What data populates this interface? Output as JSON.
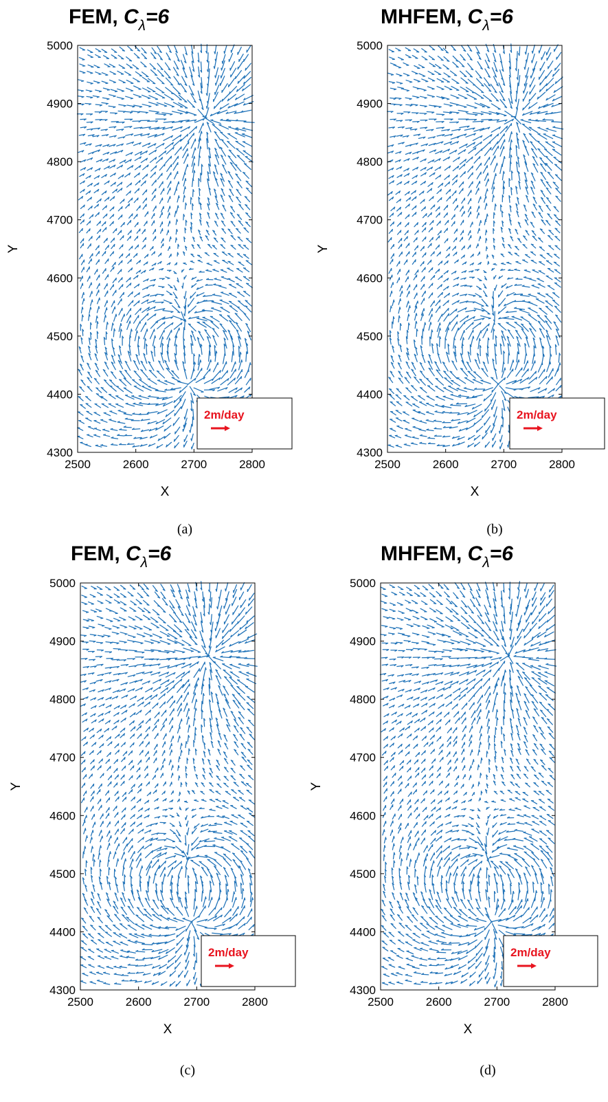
{
  "chart_data": [
    {
      "panel": "(a)",
      "type": "quiver",
      "title": {
        "method": "FEM,",
        "symbol": "C",
        "subscript": "λ",
        "rest": "=6"
      },
      "xlabel": "X",
      "ylabel": "Y",
      "xlim": [
        2500,
        2800
      ],
      "ylim": [
        4300,
        5000
      ],
      "xticks": [
        2500,
        2600,
        2700,
        2800
      ],
      "yticks": [
        4300,
        4400,
        4500,
        4600,
        4700,
        4800,
        4900,
        5000
      ],
      "sinks": [
        {
          "x": 2720,
          "y": 4875
        },
        {
          "x": 2685,
          "y": 4520
        }
      ],
      "sources": [
        {
          "x": 2690,
          "y": 4420
        }
      ],
      "scale_arrow": {
        "label": "2m/day",
        "magnitude": 2,
        "units": "m/day"
      }
    },
    {
      "panel": "(b)",
      "type": "quiver",
      "title": {
        "method": "MHFEM,",
        "symbol": "C",
        "subscript": "λ",
        "rest": "=6"
      },
      "xlabel": "X",
      "ylabel": "Y",
      "xlim": [
        2500,
        2800
      ],
      "ylim": [
        4300,
        5000
      ],
      "xticks": [
        2500,
        2600,
        2700,
        2800
      ],
      "yticks": [
        4300,
        4400,
        4500,
        4600,
        4700,
        4800,
        4900,
        5000
      ],
      "sinks": [
        {
          "x": 2720,
          "y": 4875
        },
        {
          "x": 2685,
          "y": 4520
        }
      ],
      "sources": [
        {
          "x": 2690,
          "y": 4420
        }
      ],
      "scale_arrow": {
        "label": "2m/day",
        "magnitude": 2,
        "units": "m/day"
      }
    },
    {
      "panel": "(c)",
      "type": "quiver",
      "title": {
        "method": "FEM,",
        "symbol": "C",
        "subscript": "λ",
        "rest": "=6"
      },
      "xlabel": "X",
      "ylabel": "Y",
      "xlim": [
        2500,
        2800
      ],
      "ylim": [
        4300,
        5000
      ],
      "xticks": [
        2500,
        2600,
        2700,
        2800
      ],
      "yticks": [
        4300,
        4400,
        4500,
        4600,
        4700,
        4800,
        4900,
        5000
      ],
      "sinks": [
        {
          "x": 2720,
          "y": 4875
        },
        {
          "x": 2685,
          "y": 4520
        }
      ],
      "sources": [
        {
          "x": 2690,
          "y": 4420
        }
      ],
      "scale_arrow": {
        "label": "2m/day",
        "magnitude": 2,
        "units": "m/day"
      }
    },
    {
      "panel": "(d)",
      "type": "quiver",
      "title": {
        "method": "MHFEM,",
        "symbol": "C",
        "subscript": "λ",
        "rest": "=6"
      },
      "xlabel": "X",
      "ylabel": "Y",
      "xlim": [
        2500,
        2800
      ],
      "ylim": [
        4300,
        5000
      ],
      "xticks": [
        2500,
        2600,
        2700,
        2800
      ],
      "yticks": [
        4300,
        4400,
        4500,
        4600,
        4700,
        4800,
        4900,
        5000
      ],
      "sinks": [
        {
          "x": 2720,
          "y": 4875
        },
        {
          "x": 2685,
          "y": 4520
        }
      ],
      "sources": [
        {
          "x": 2690,
          "y": 4420
        }
      ],
      "scale_arrow": {
        "label": "2m/day",
        "magnitude": 2,
        "units": "m/day"
      }
    }
  ],
  "colors": {
    "arrows": "#1f72b8",
    "scale": "#e8141f",
    "axes": "#000000"
  }
}
